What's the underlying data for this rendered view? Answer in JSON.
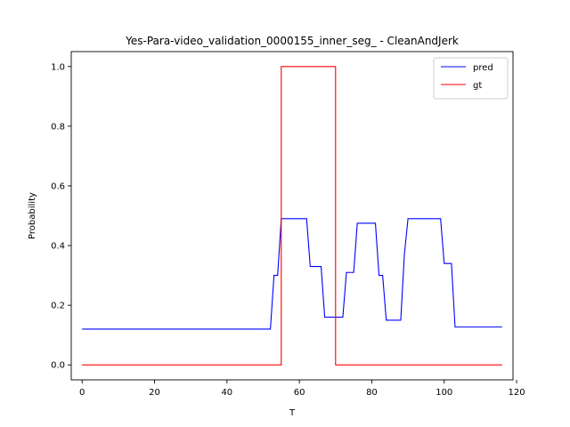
{
  "chart_data": {
    "type": "line",
    "title": "Yes-Para-video_validation_0000155_inner_seg_ - CleanAndJerk",
    "xlabel": "T",
    "ylabel": "Probability",
    "xlim": [
      -3,
      119
    ],
    "ylim": [
      -0.05,
      1.05
    ],
    "xticks": [
      "0",
      "20",
      "40",
      "60",
      "80",
      "100",
      "120"
    ],
    "yticks": [
      "0.0",
      "0.2",
      "0.4",
      "0.6",
      "0.8",
      "1.0"
    ],
    "grid": false,
    "legend_position": "top-right",
    "series": [
      {
        "name": "pred",
        "color": "#0000ff",
        "points": [
          [
            0,
            0.12
          ],
          [
            52,
            0.12
          ],
          [
            53,
            0.3
          ],
          [
            54,
            0.3
          ],
          [
            55,
            0.49
          ],
          [
            62,
            0.49
          ],
          [
            63,
            0.33
          ],
          [
            66,
            0.33
          ],
          [
            67,
            0.16
          ],
          [
            72,
            0.16
          ],
          [
            73,
            0.31
          ],
          [
            75,
            0.31
          ],
          [
            76,
            0.475
          ],
          [
            81,
            0.475
          ],
          [
            82,
            0.3
          ],
          [
            83,
            0.3
          ],
          [
            84,
            0.15
          ],
          [
            88,
            0.15
          ],
          [
            89,
            0.37
          ],
          [
            90,
            0.49
          ],
          [
            99,
            0.49
          ],
          [
            100,
            0.34
          ],
          [
            102,
            0.34
          ],
          [
            103,
            0.127
          ],
          [
            116,
            0.127
          ]
        ]
      },
      {
        "name": "gt",
        "color": "#ff0000",
        "points": [
          [
            0,
            0.0
          ],
          [
            55,
            0.0
          ],
          [
            55,
            1.0
          ],
          [
            70,
            1.0
          ],
          [
            70,
            0.0
          ],
          [
            116,
            0.0
          ]
        ]
      }
    ]
  }
}
